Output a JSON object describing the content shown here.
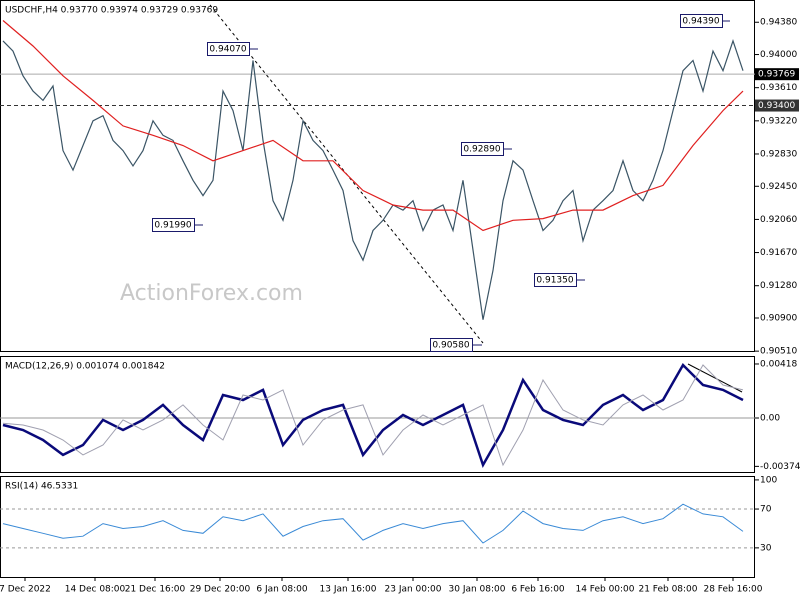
{
  "chart_data": [
    {
      "type": "line",
      "title": "USDCHF,H4 0.93770 0.93974 0.93729 0.93769",
      "watermark": "ActionForex.com",
      "xlim": [
        -0.3,
        75.2
      ],
      "ylim": [
        0.905,
        0.9463
      ],
      "yticks": [
        {
          "value": 0.9438,
          "label": "0.94380"
        },
        {
          "value": 0.94,
          "label": "0.94000"
        },
        {
          "value": 0.9361,
          "label": "0.93610"
        },
        {
          "value": 0.9322,
          "label": "0.93220"
        },
        {
          "value": 0.9283,
          "label": "0.92830"
        },
        {
          "value": 0.9245,
          "label": "0.92450"
        },
        {
          "value": 0.9206,
          "label": "0.92060"
        },
        {
          "value": 0.9167,
          "label": "0.91670"
        },
        {
          "value": 0.9128,
          "label": "0.91280"
        },
        {
          "value": 0.909,
          "label": "0.90900"
        },
        {
          "value": 0.9051,
          "label": "0.90510"
        }
      ],
      "markers": [
        {
          "value": 0.93769,
          "label": "0.93769",
          "color": "#000000"
        },
        {
          "value": 0.934,
          "label": "0.93400",
          "color": "#333333"
        }
      ],
      "annotations": [
        "0.94390",
        "0.94070",
        "0.92890",
        "0.91990",
        "0.91350",
        "0.90580"
      ],
      "series": [
        {
          "name": "USDCHF",
          "color": "#3b5566",
          "x": [
            0,
            1,
            2,
            3,
            4,
            5,
            6,
            7,
            8,
            9,
            10,
            11,
            12,
            13,
            14,
            15,
            16,
            17,
            18,
            19,
            20,
            21,
            22,
            23,
            24,
            25,
            26,
            27,
            28,
            29,
            30,
            31,
            32,
            33,
            34,
            35,
            36,
            37,
            38,
            39,
            40,
            41,
            42,
            43,
            44,
            45,
            46,
            47,
            48,
            49,
            50,
            51,
            52,
            53,
            54,
            55,
            56,
            57,
            58,
            59,
            60,
            61,
            62,
            63,
            64,
            65,
            66,
            67,
            68,
            69,
            70,
            71,
            72,
            73,
            74
          ],
          "values": [
            0.9416,
            0.9404,
            0.9375,
            0.9357,
            0.9346,
            0.9363,
            0.9287,
            0.9264,
            0.9293,
            0.9322,
            0.9328,
            0.9299,
            0.9287,
            0.9269,
            0.9287,
            0.9322,
            0.9305,
            0.9299,
            0.9275,
            0.9252,
            0.9234,
            0.9252,
            0.9357,
            0.9334,
            0.9287,
            0.9393,
            0.9299,
            0.9228,
            0.9205,
            0.9252,
            0.9322,
            0.9299,
            0.9287,
            0.9264,
            0.924,
            0.9181,
            0.9158,
            0.9193,
            0.9205,
            0.9223,
            0.9217,
            0.9228,
            0.9193,
            0.9217,
            0.9223,
            0.9193,
            0.9252,
            0.917,
            0.9088,
            0.9146,
            0.9228,
            0.9275,
            0.9264,
            0.9228,
            0.9193,
            0.9205,
            0.9228,
            0.924,
            0.9181,
            0.9217,
            0.9228,
            0.924,
            0.9275,
            0.924,
            0.9228,
            0.9252,
            0.9287,
            0.9334,
            0.9381,
            0.9393,
            0.9357,
            0.9404,
            0.9381,
            0.9416,
            0.9381
          ]
        },
        {
          "name": "MA",
          "color": "#e02020",
          "x": [
            0,
            3,
            6,
            9,
            12,
            15,
            18,
            21,
            24,
            27,
            30,
            33,
            36,
            39,
            42,
            45,
            48,
            51,
            54,
            57,
            60,
            63,
            66,
            69,
            72,
            74
          ],
          "values": [
            0.944,
            0.941,
            0.9375,
            0.9346,
            0.9316,
            0.9305,
            0.9293,
            0.9275,
            0.9287,
            0.9299,
            0.9275,
            0.9275,
            0.924,
            0.9223,
            0.9217,
            0.9217,
            0.9193,
            0.9205,
            0.9207,
            0.9217,
            0.9217,
            0.9234,
            0.9246,
            0.9293,
            0.9334,
            0.9357
          ]
        }
      ]
    },
    {
      "type": "line",
      "title": "MACD(12,26,9) 0.001074 0.001842",
      "xlim": [
        -0.3,
        75.2
      ],
      "ylim": [
        -0.00418,
        0.00472
      ],
      "yticks": [
        {
          "value": 0.00418,
          "label": "0.00418"
        },
        {
          "value": 0,
          "label": "0.00"
        },
        {
          "value": -0.003744,
          "label": "-0.003744"
        }
      ],
      "hlines": [
        0
      ],
      "series": [
        {
          "name": "MACD",
          "color": "#0a0a7a",
          "x": [
            0,
            2,
            4,
            6,
            8,
            10,
            12,
            14,
            16,
            18,
            20,
            22,
            24,
            26,
            28,
            30,
            32,
            34,
            36,
            38,
            40,
            42,
            44,
            46,
            48,
            50,
            52,
            54,
            56,
            58,
            60,
            62,
            64,
            66,
            68,
            70,
            72,
            74
          ],
          "values": [
            -0.00054,
            -0.00093,
            -0.0017,
            -0.00286,
            -0.00209,
            -0.00015,
            -0.00093,
            -0.00015,
            0.00101,
            -0.00054,
            -0.0017,
            0.00178,
            0.00139,
            0.00217,
            -0.00209,
            -0.00015,
            0.00062,
            0.00101,
            -0.00286,
            -0.00093,
            0.00023,
            -0.00054,
            0.00023,
            0.00101,
            -0.00364,
            -0.00093,
            0.00294,
            0.00062,
            -0.00015,
            -0.00054,
            0.00101,
            0.00178,
            0.00062,
            0.00139,
            0.0041,
            0.00255,
            0.00217,
            0.00139
          ]
        },
        {
          "name": "Signal",
          "color": "#a0a0b0",
          "x": [
            0,
            2,
            4,
            6,
            8,
            10,
            12,
            14,
            16,
            18,
            20,
            22,
            24,
            26,
            28,
            30,
            32,
            34,
            36,
            38,
            40,
            42,
            44,
            46,
            48,
            50,
            52,
            54,
            56,
            58,
            60,
            62,
            64,
            66,
            68,
            70,
            72,
            74
          ],
          "values": [
            -0.0004,
            -0.00054,
            -0.00093,
            -0.0017,
            -0.00286,
            -0.00209,
            -0.00015,
            -0.00093,
            -0.00015,
            0.00101,
            -0.00054,
            -0.0017,
            0.00178,
            0.00139,
            0.00217,
            -0.00209,
            -0.00015,
            0.00062,
            0.00101,
            -0.00286,
            -0.00093,
            0.00023,
            -0.00054,
            0.00023,
            0.00101,
            -0.00364,
            -0.00093,
            0.00294,
            0.00062,
            -0.00015,
            -0.00054,
            0.00101,
            0.00178,
            0.00062,
            0.00139,
            0.0041,
            0.00255,
            0.00217
          ]
        }
      ]
    },
    {
      "type": "line",
      "title": "RSI(14) 46.5331",
      "xlim": [
        -0.3,
        75.2
      ],
      "ylim": [
        0,
        103
      ],
      "yticks": [
        100,
        70,
        30
      ],
      "hlines": [
        70,
        30
      ],
      "xticks": [
        {
          "value": 2.2,
          "label": "7 Dec 2022"
        },
        {
          "value": 9.2,
          "label": "14 Dec 08:00"
        },
        {
          "value": 15.2,
          "label": "21 Dec 16:00"
        },
        {
          "value": 21.7,
          "label": "29 Dec 20:00"
        },
        {
          "value": 27.9,
          "label": "6 Jan 08:00"
        },
        {
          "value": 34.5,
          "label": "13 Jan 16:00"
        },
        {
          "value": 41,
          "label": "23 Jan 00:00"
        },
        {
          "value": 47.4,
          "label": "30 Jan 08:00"
        },
        {
          "value": 53.5,
          "label": "6 Feb 16:00"
        },
        {
          "value": 60.2,
          "label": "14 Feb 00:00"
        },
        {
          "value": 66.5,
          "label": "21 Feb 08:00"
        },
        {
          "value": 73,
          "label": "28 Feb 16:00"
        }
      ],
      "series": [
        {
          "name": "RSI",
          "color": "#3a8ad6",
          "x": [
            0,
            2,
            4,
            6,
            8,
            10,
            12,
            14,
            16,
            18,
            20,
            22,
            24,
            26,
            28,
            30,
            32,
            34,
            36,
            38,
            40,
            42,
            44,
            46,
            48,
            50,
            52,
            54,
            56,
            58,
            60,
            62,
            64,
            66,
            68,
            70,
            72,
            74
          ],
          "values": [
            55,
            50,
            45,
            40,
            42,
            55,
            50,
            52,
            58,
            48,
            45,
            62,
            58,
            65,
            42,
            52,
            58,
            60,
            38,
            48,
            55,
            50,
            55,
            58,
            35,
            48,
            68,
            55,
            50,
            48,
            58,
            62,
            55,
            60,
            75,
            65,
            62,
            47
          ]
        }
      ]
    }
  ]
}
